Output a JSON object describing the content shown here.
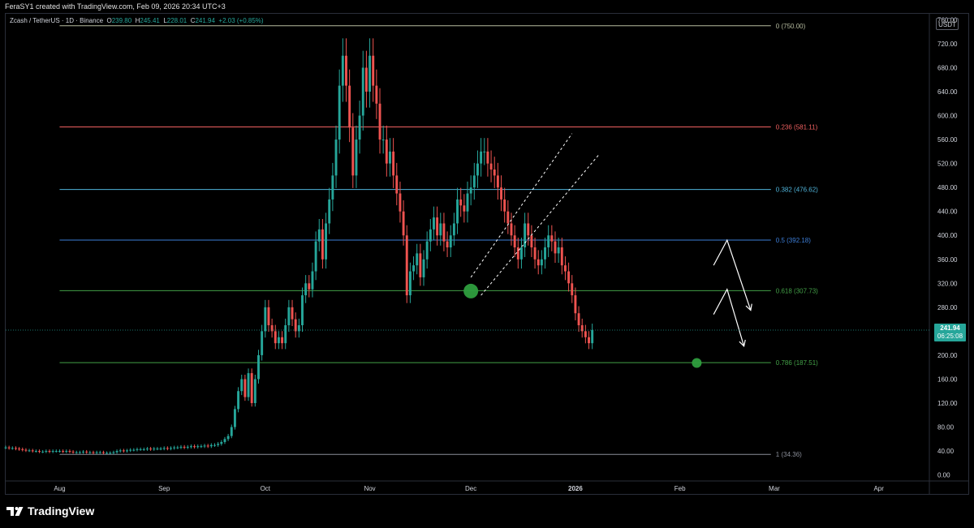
{
  "header": {
    "attribution": "FeraSY1 created with TradingView.com, Feb 09, 2026 20:34 UTC+3"
  },
  "legend": {
    "symbol": "Zcash / TetherUS · 1D · Binance",
    "open_label": "O",
    "open": "239.80",
    "high_label": "H",
    "high": "245.41",
    "low_label": "L",
    "low": "228.01",
    "close_label": "C",
    "close": "241.94",
    "change": "+2.03 (+0.85%)"
  },
  "price_axis": {
    "unit": "USDT",
    "last_price": "241.94",
    "countdown": "06:25:08"
  },
  "footer": {
    "brand": "TradingView"
  },
  "colors": {
    "up": "#26a69a",
    "down": "#ef5350",
    "fib_0": "#b7bca0",
    "fib_236": "#f06060",
    "fib_382": "#4fb3d9",
    "fib_5": "#3d7fd9",
    "fib_618": "#43a047",
    "fib_786": "#43a047",
    "fib_1": "#8a8e99",
    "marker": "#2e9e3e"
  },
  "chart_data": {
    "type": "candlestick",
    "title": "",
    "ylim": [
      -10,
      770
    ],
    "y_ticks": [
      0,
      40,
      80,
      120,
      160,
      200,
      240,
      280,
      320,
      360,
      400,
      440,
      480,
      520,
      560,
      600,
      640,
      680,
      720,
      760
    ],
    "y_tick_labels": [
      "0.00",
      "40.00",
      "80.00",
      "120.00",
      "160.00",
      "200.00",
      "240.00",
      "280.00",
      "320.00",
      "360.00",
      "400.00",
      "440.00",
      "480.00",
      "520.00",
      "560.00",
      "600.00",
      "640.00",
      "680.00",
      "720.00",
      "760.00"
    ],
    "x_ticks": [
      {
        "date": "2025-08-01",
        "label": "Aug"
      },
      {
        "date": "2025-09-01",
        "label": "Sep"
      },
      {
        "date": "2025-10-01",
        "label": "Oct"
      },
      {
        "date": "2025-11-01",
        "label": "Nov"
      },
      {
        "date": "2025-12-01",
        "label": "Dec"
      },
      {
        "date": "2026-01-01",
        "label": "2026"
      },
      {
        "date": "2026-02-01",
        "label": "Feb"
      },
      {
        "date": "2026-03-01",
        "label": "Mar"
      },
      {
        "date": "2026-04-01",
        "label": "Apr"
      }
    ],
    "x_range": [
      "2025-07-16",
      "2026-04-16"
    ],
    "candles": {
      "start_date": "2025-07-16",
      "interval": "1D",
      "open_first": 46,
      "close": [
        46,
        45,
        45,
        44,
        43,
        42,
        41,
        41,
        40,
        40,
        39,
        39,
        40,
        39,
        40,
        40,
        40,
        39,
        40,
        39,
        38,
        38,
        38,
        39,
        38,
        38,
        37,
        38,
        38,
        37,
        37,
        37,
        38,
        40,
        41,
        40,
        41,
        42,
        42,
        43,
        43,
        43,
        44,
        43,
        44,
        44,
        44,
        45,
        44,
        45,
        46,
        46,
        47,
        46,
        47,
        48,
        47,
        48,
        48,
        49,
        48,
        50,
        50,
        52,
        55,
        60,
        65,
        80,
        110,
        140,
        160,
        130,
        170,
        120,
        160,
        200,
        240,
        280,
        250,
        240,
        220,
        230,
        220,
        250,
        280,
        260,
        240,
        250,
        300,
        320,
        310,
        340,
        390,
        410,
        360,
        420,
        460,
        500,
        560,
        650,
        700,
        650,
        580,
        500,
        560,
        600,
        680,
        640,
        700,
        650,
        620,
        560,
        560,
        520,
        540,
        500,
        470,
        440,
        400,
        300,
        340,
        350,
        370,
        330,
        360,
        390,
        410,
        430,
        400,
        420,
        390,
        380,
        400,
        420,
        460,
        450,
        440,
        470,
        480,
        500,
        520,
        540,
        540,
        520,
        510,
        500,
        480,
        460,
        440,
        420,
        400,
        380,
        360,
        380,
        420,
        400,
        380,
        360,
        350,
        360,
        380,
        400,
        390,
        370,
        380,
        350,
        340,
        320,
        300,
        270,
        250,
        240,
        230,
        220,
        242
      ],
      "low_first": 34
    },
    "fibonacci": [
      {
        "ratio": "0",
        "price": 750.0,
        "label": "0 (750.00)"
      },
      {
        "ratio": "0.236",
        "price": 581.11,
        "label": "0.236 (581.11)"
      },
      {
        "ratio": "0.382",
        "price": 476.62,
        "label": "0.382 (476.62)"
      },
      {
        "ratio": "0.5",
        "price": 392.18,
        "label": "0.5 (392.18)"
      },
      {
        "ratio": "0.618",
        "price": 307.73,
        "label": "0.618 (307.73)"
      },
      {
        "ratio": "0.786",
        "price": 187.51,
        "label": "0.786 (187.51)"
      },
      {
        "ratio": "1",
        "price": 34.36,
        "label": "1 (34.36)"
      }
    ],
    "fib_start_date": "2025-08-01",
    "fib_end_date": "2026-02-28",
    "channel": [
      {
        "from": [
          "2025-12-01",
          330
        ],
        "to": [
          "2025-12-31",
          570
        ]
      },
      {
        "from": [
          "2025-12-04",
          300
        ],
        "to": [
          "2026-01-08",
          535
        ]
      }
    ],
    "markers": [
      {
        "date": "2025-12-01",
        "price": 307
      },
      {
        "date": "2026-02-06",
        "price": 187
      }
    ],
    "arrows": [
      [
        [
          "2026-02-11",
          350
        ],
        [
          "2026-02-15",
          392
        ],
        [
          "2026-02-22",
          275
        ]
      ],
      [
        [
          "2026-02-11",
          268
        ],
        [
          "2026-02-15",
          310
        ],
        [
          "2026-02-20",
          215
        ]
      ]
    ],
    "grid": false,
    "legend_position": "top-left"
  }
}
